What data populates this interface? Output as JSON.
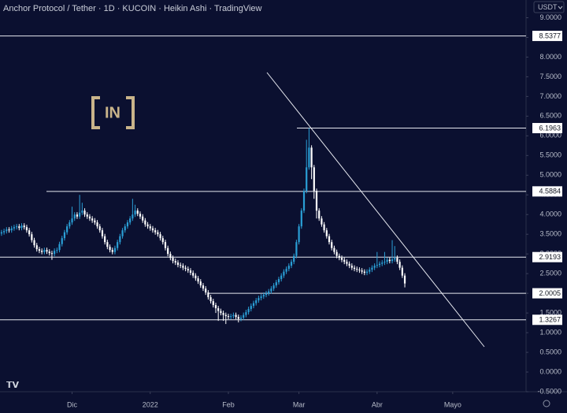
{
  "chart_data": {
    "type": "candlestick",
    "title": "Anchor Protocol / Tether · 1D · KUCOIN · Heikin Ashi · TradingView",
    "currency": "USDT",
    "logo_text": "IN",
    "up_color": "#2a9fd6",
    "down_color": "#ffffff",
    "xlim": [
      -0.6,
      208.1
    ],
    "xticks": [
      {
        "value": 28,
        "label": "Dic"
      },
      {
        "value": 59,
        "label": "2022"
      },
      {
        "value": 90,
        "label": "Feb"
      },
      {
        "value": 118,
        "label": "Mar"
      },
      {
        "value": 149,
        "label": "Abr"
      },
      {
        "value": 179,
        "label": "Mayo"
      }
    ],
    "ylim": [
      -0.5,
      9.25
    ],
    "yticks": [
      {
        "value": 9,
        "label": "9.0000"
      },
      {
        "value": 8.5,
        "label": "8.5000"
      },
      {
        "value": 8,
        "label": "8.0000"
      },
      {
        "value": 7.5,
        "label": "7.5000"
      },
      {
        "value": 7,
        "label": "7.0000"
      },
      {
        "value": 6.5,
        "label": "6.5000"
      },
      {
        "value": 6,
        "label": "6.0000"
      },
      {
        "value": 5.5,
        "label": "5.5000"
      },
      {
        "value": 5,
        "label": "5.0000"
      },
      {
        "value": 4.5,
        "label": "4.5000"
      },
      {
        "value": 4,
        "label": "4.0000"
      },
      {
        "value": 3.5,
        "label": "3.5000"
      },
      {
        "value": 3,
        "label": "3.0000"
      },
      {
        "value": 2.5,
        "label": "2.5000"
      },
      {
        "value": 2,
        "label": "2.0000"
      },
      {
        "value": 1.5,
        "label": "1.5000"
      },
      {
        "value": 1,
        "label": "1.0000"
      },
      {
        "value": 0.5,
        "label": "0.5000"
      },
      {
        "value": 0,
        "label": "0.0000"
      },
      {
        "value": -0.5,
        "label": "-0.5000"
      }
    ],
    "grid": false,
    "levels": [
      8.5377,
      6.1963,
      4.5884,
      2.9193,
      2.0005,
      1.3267
    ],
    "candles": [
      [
        3.52,
        3.61,
        3.46,
        3.55
      ],
      [
        3.55,
        3.64,
        3.49,
        3.58
      ],
      [
        3.58,
        3.68,
        3.52,
        3.62
      ],
      [
        3.62,
        3.68,
        3.54,
        3.6
      ],
      [
        3.6,
        3.71,
        3.54,
        3.65
      ],
      [
        3.65,
        3.74,
        3.59,
        3.68
      ],
      [
        3.68,
        3.76,
        3.62,
        3.7
      ],
      [
        3.7,
        3.76,
        3.6,
        3.66
      ],
      [
        3.66,
        3.78,
        3.6,
        3.72
      ],
      [
        3.72,
        3.78,
        3.62,
        3.68
      ],
      [
        3.68,
        3.74,
        3.54,
        3.6
      ],
      [
        3.6,
        3.66,
        3.44,
        3.5
      ],
      [
        3.5,
        3.56,
        3.29,
        3.35
      ],
      [
        3.35,
        3.41,
        3.16,
        3.22
      ],
      [
        3.22,
        3.28,
        3.06,
        3.12
      ],
      [
        3.12,
        3.18,
        3.02,
        3.08
      ],
      [
        3.08,
        3.14,
        2.99,
        3.05
      ],
      [
        3.05,
        3.16,
        2.99,
        3.1
      ],
      [
        3.1,
        3.16,
        3.0,
        3.06
      ],
      [
        3.06,
        3.12,
        2.96,
        3.02
      ],
      [
        3.02,
        3.08,
        2.85,
        3.0
      ],
      [
        3.0,
        3.14,
        2.94,
        3.08
      ],
      [
        3.08,
        3.16,
        3.02,
        3.1
      ],
      [
        3.1,
        3.31,
        3.04,
        3.25
      ],
      [
        3.25,
        3.46,
        3.19,
        3.4
      ],
      [
        3.4,
        3.61,
        3.34,
        3.55
      ],
      [
        3.55,
        3.76,
        3.49,
        3.7
      ],
      [
        3.7,
        3.86,
        3.64,
        3.8
      ],
      [
        3.8,
        4.2,
        3.74,
        3.9
      ],
      [
        3.9,
        4.06,
        3.84,
        4.0
      ],
      [
        4.0,
        4.06,
        3.89,
        3.95
      ],
      [
        3.95,
        4.5,
        3.89,
        4.05
      ],
      [
        4.05,
        4.3,
        3.99,
        4.1
      ],
      [
        4.1,
        4.16,
        3.94,
        4.0
      ],
      [
        4.0,
        4.06,
        3.89,
        3.95
      ],
      [
        3.95,
        4.01,
        3.84,
        3.9
      ],
      [
        3.9,
        3.96,
        3.79,
        3.85
      ],
      [
        3.85,
        3.91,
        3.74,
        3.8
      ],
      [
        3.8,
        3.86,
        3.64,
        3.7
      ],
      [
        3.7,
        3.76,
        3.54,
        3.6
      ],
      [
        3.6,
        3.66,
        3.39,
        3.45
      ],
      [
        3.45,
        3.51,
        3.24,
        3.3
      ],
      [
        3.3,
        3.36,
        3.12,
        3.18
      ],
      [
        3.18,
        3.24,
        3.04,
        3.1
      ],
      [
        3.1,
        3.16,
        2.99,
        3.05
      ],
      [
        3.05,
        3.21,
        2.99,
        3.15
      ],
      [
        3.15,
        3.36,
        3.09,
        3.3
      ],
      [
        3.3,
        3.51,
        3.24,
        3.45
      ],
      [
        3.45,
        3.66,
        3.39,
        3.6
      ],
      [
        3.6,
        3.76,
        3.54,
        3.7
      ],
      [
        3.7,
        3.86,
        3.64,
        3.8
      ],
      [
        3.8,
        3.96,
        3.74,
        3.9
      ],
      [
        3.9,
        4.4,
        3.84,
        4.0
      ],
      [
        4.0,
        4.25,
        3.94,
        4.1
      ],
      [
        4.1,
        4.16,
        3.96,
        4.02
      ],
      [
        4.02,
        4.08,
        3.89,
        3.95
      ],
      [
        3.95,
        4.01,
        3.79,
        3.85
      ],
      [
        3.85,
        3.91,
        3.69,
        3.75
      ],
      [
        3.75,
        3.81,
        3.64,
        3.7
      ],
      [
        3.7,
        3.76,
        3.59,
        3.65
      ],
      [
        3.65,
        3.71,
        3.54,
        3.6
      ],
      [
        3.6,
        3.66,
        3.49,
        3.55
      ],
      [
        3.55,
        3.61,
        3.44,
        3.5
      ],
      [
        3.5,
        3.56,
        3.34,
        3.4
      ],
      [
        3.4,
        3.46,
        3.24,
        3.3
      ],
      [
        3.3,
        3.36,
        3.09,
        3.15
      ],
      [
        3.15,
        3.21,
        2.94,
        3.0
      ],
      [
        3.0,
        3.06,
        2.84,
        2.9
      ],
      [
        2.9,
        2.96,
        2.76,
        2.82
      ],
      [
        2.82,
        2.88,
        2.72,
        2.78
      ],
      [
        2.78,
        2.84,
        2.66,
        2.72
      ],
      [
        2.72,
        2.78,
        2.64,
        2.7
      ],
      [
        2.7,
        2.76,
        2.59,
        2.65
      ],
      [
        2.65,
        2.71,
        2.56,
        2.62
      ],
      [
        2.62,
        2.68,
        2.52,
        2.58
      ],
      [
        2.58,
        2.64,
        2.46,
        2.52
      ],
      [
        2.52,
        2.58,
        2.39,
        2.45
      ],
      [
        2.45,
        2.51,
        2.32,
        2.38
      ],
      [
        2.38,
        2.44,
        2.24,
        2.3
      ],
      [
        2.3,
        2.36,
        2.14,
        2.2
      ],
      [
        2.2,
        2.26,
        2.06,
        2.12
      ],
      [
        2.12,
        2.18,
        1.96,
        2.02
      ],
      [
        2.02,
        2.08,
        1.84,
        1.9
      ],
      [
        1.9,
        1.96,
        1.74,
        1.8
      ],
      [
        1.8,
        1.86,
        1.64,
        1.7
      ],
      [
        1.7,
        1.76,
        1.5,
        1.62
      ],
      [
        1.62,
        1.68,
        1.3,
        1.55
      ],
      [
        1.55,
        1.61,
        1.44,
        1.5
      ],
      [
        1.5,
        1.56,
        1.3,
        1.45
      ],
      [
        1.45,
        1.51,
        1.22,
        1.42
      ],
      [
        1.42,
        1.48,
        1.34,
        1.4
      ],
      [
        1.4,
        1.48,
        1.34,
        1.42
      ],
      [
        1.42,
        1.51,
        1.36,
        1.45
      ],
      [
        1.45,
        1.51,
        1.34,
        1.4
      ],
      [
        1.4,
        1.46,
        1.26,
        1.35
      ],
      [
        1.35,
        1.44,
        1.29,
        1.38
      ],
      [
        1.38,
        1.51,
        1.32,
        1.45
      ],
      [
        1.45,
        1.58,
        1.39,
        1.52
      ],
      [
        1.52,
        1.66,
        1.46,
        1.6
      ],
      [
        1.6,
        1.74,
        1.54,
        1.68
      ],
      [
        1.68,
        1.81,
        1.62,
        1.75
      ],
      [
        1.75,
        1.88,
        1.69,
        1.82
      ],
      [
        1.82,
        1.94,
        1.76,
        1.88
      ],
      [
        1.88,
        1.98,
        1.82,
        1.92
      ],
      [
        1.92,
        2.02,
        1.86,
        1.96
      ],
      [
        1.96,
        2.06,
        1.9,
        2.0
      ],
      [
        2.0,
        2.11,
        1.94,
        2.05
      ],
      [
        2.05,
        2.18,
        1.99,
        2.12
      ],
      [
        2.12,
        2.26,
        2.06,
        2.2
      ],
      [
        2.2,
        2.34,
        2.14,
        2.28
      ],
      [
        2.28,
        2.42,
        2.22,
        2.36
      ],
      [
        2.36,
        2.51,
        2.3,
        2.45
      ],
      [
        2.45,
        2.61,
        2.39,
        2.55
      ],
      [
        2.55,
        2.68,
        2.49,
        2.62
      ],
      [
        2.62,
        2.76,
        2.56,
        2.7
      ],
      [
        2.7,
        2.86,
        2.64,
        2.8
      ],
      [
        2.8,
        3.01,
        2.74,
        2.95
      ],
      [
        2.95,
        3.36,
        2.89,
        3.3
      ],
      [
        3.3,
        3.76,
        3.24,
        3.7
      ],
      [
        3.7,
        4.16,
        3.64,
        4.1
      ],
      [
        4.1,
        4.66,
        4.04,
        4.6
      ],
      [
        4.6,
        5.9,
        4.54,
        5.2
      ],
      [
        5.2,
        6.2,
        5.14,
        5.7
      ],
      [
        5.7,
        5.76,
        4.9,
        5.2
      ],
      [
        5.2,
        5.26,
        4.4,
        4.6
      ],
      [
        4.6,
        4.66,
        3.9,
        4.1
      ],
      [
        4.1,
        4.16,
        3.84,
        3.9
      ],
      [
        3.9,
        3.96,
        3.69,
        3.75
      ],
      [
        3.75,
        3.81,
        3.54,
        3.6
      ],
      [
        3.6,
        3.66,
        3.39,
        3.45
      ],
      [
        3.45,
        3.51,
        3.24,
        3.3
      ],
      [
        3.3,
        3.36,
        3.09,
        3.15
      ],
      [
        3.15,
        3.21,
        2.99,
        3.05
      ],
      [
        3.05,
        3.11,
        2.89,
        2.95
      ],
      [
        2.95,
        3.01,
        2.84,
        2.9
      ],
      [
        2.9,
        2.96,
        2.79,
        2.85
      ],
      [
        2.85,
        2.91,
        2.74,
        2.8
      ],
      [
        2.8,
        2.86,
        2.69,
        2.75
      ],
      [
        2.75,
        2.81,
        2.64,
        2.7
      ],
      [
        2.7,
        2.76,
        2.59,
        2.65
      ],
      [
        2.65,
        2.71,
        2.56,
        2.62
      ],
      [
        2.62,
        2.68,
        2.54,
        2.6
      ],
      [
        2.6,
        2.66,
        2.52,
        2.58
      ],
      [
        2.58,
        2.64,
        2.49,
        2.55
      ],
      [
        2.55,
        2.61,
        2.46,
        2.52
      ],
      [
        2.52,
        2.61,
        2.46,
        2.55
      ],
      [
        2.55,
        2.66,
        2.49,
        2.6
      ],
      [
        2.6,
        2.71,
        2.54,
        2.65
      ],
      [
        2.65,
        2.76,
        2.59,
        2.7
      ],
      [
        2.7,
        3.05,
        2.64,
        2.72
      ],
      [
        2.72,
        2.81,
        2.66,
        2.75
      ],
      [
        2.75,
        2.84,
        2.69,
        2.78
      ],
      [
        2.78,
        3.05,
        2.72,
        2.8
      ],
      [
        2.8,
        2.91,
        2.74,
        2.85
      ],
      [
        2.85,
        2.91,
        2.76,
        2.82
      ],
      [
        2.82,
        3.35,
        2.76,
        2.86
      ],
      [
        2.86,
        3.2,
        2.8,
        2.9
      ],
      [
        2.9,
        2.96,
        2.74,
        2.8
      ],
      [
        2.8,
        2.86,
        2.59,
        2.65
      ],
      [
        2.65,
        2.71,
        2.39,
        2.45
      ],
      [
        2.45,
        2.51,
        2.15,
        2.25
      ]
    ]
  }
}
